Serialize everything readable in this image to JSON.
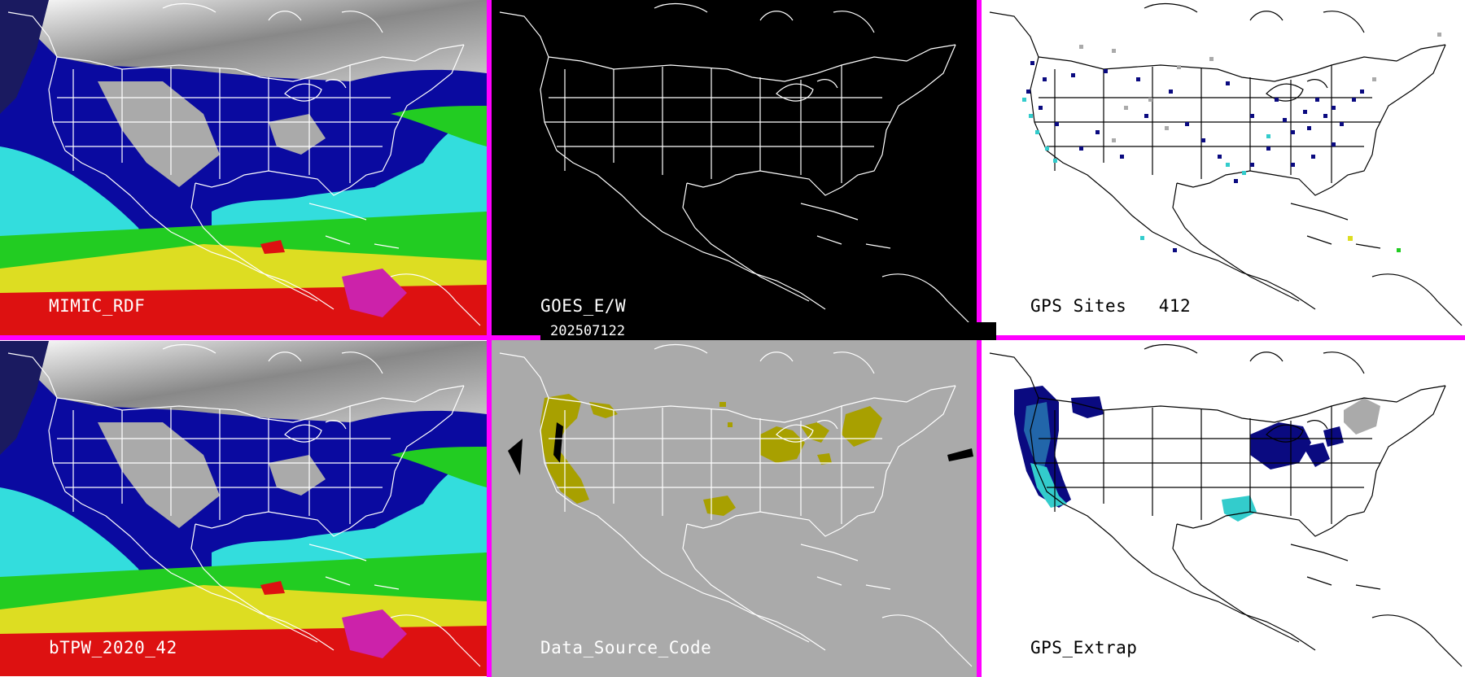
{
  "panels": [
    {
      "label": "MIMIC_RDF",
      "style": "satellite",
      "text_color": "#ffffff"
    },
    {
      "label": "GOES_E/W",
      "style": "outline-dark",
      "text_color": "#ffffff"
    },
    {
      "label": "GPS Sites   412",
      "style": "gps-sites",
      "text_color": "#000000"
    },
    {
      "label": "bTPW_2020_42",
      "style": "satellite",
      "text_color": "#ffffff"
    },
    {
      "label": "Data_Source_Code",
      "style": "source-code",
      "text_color": "#ffffff"
    },
    {
      "label": "GPS_Extrap",
      "style": "gps-extrap",
      "text_color": "#000000"
    }
  ],
  "timestamp": "202507122",
  "colors": {
    "divider": "#ff00ff",
    "land_gray": "#b4b4b4",
    "deep_blue": "#0a0aa0",
    "cyan": "#33dddd",
    "green": "#22dd22",
    "yellow": "#dddd22",
    "red": "#dd1111",
    "source_code_olive": "#a8a000",
    "gps_navy": "#0a0a80"
  }
}
